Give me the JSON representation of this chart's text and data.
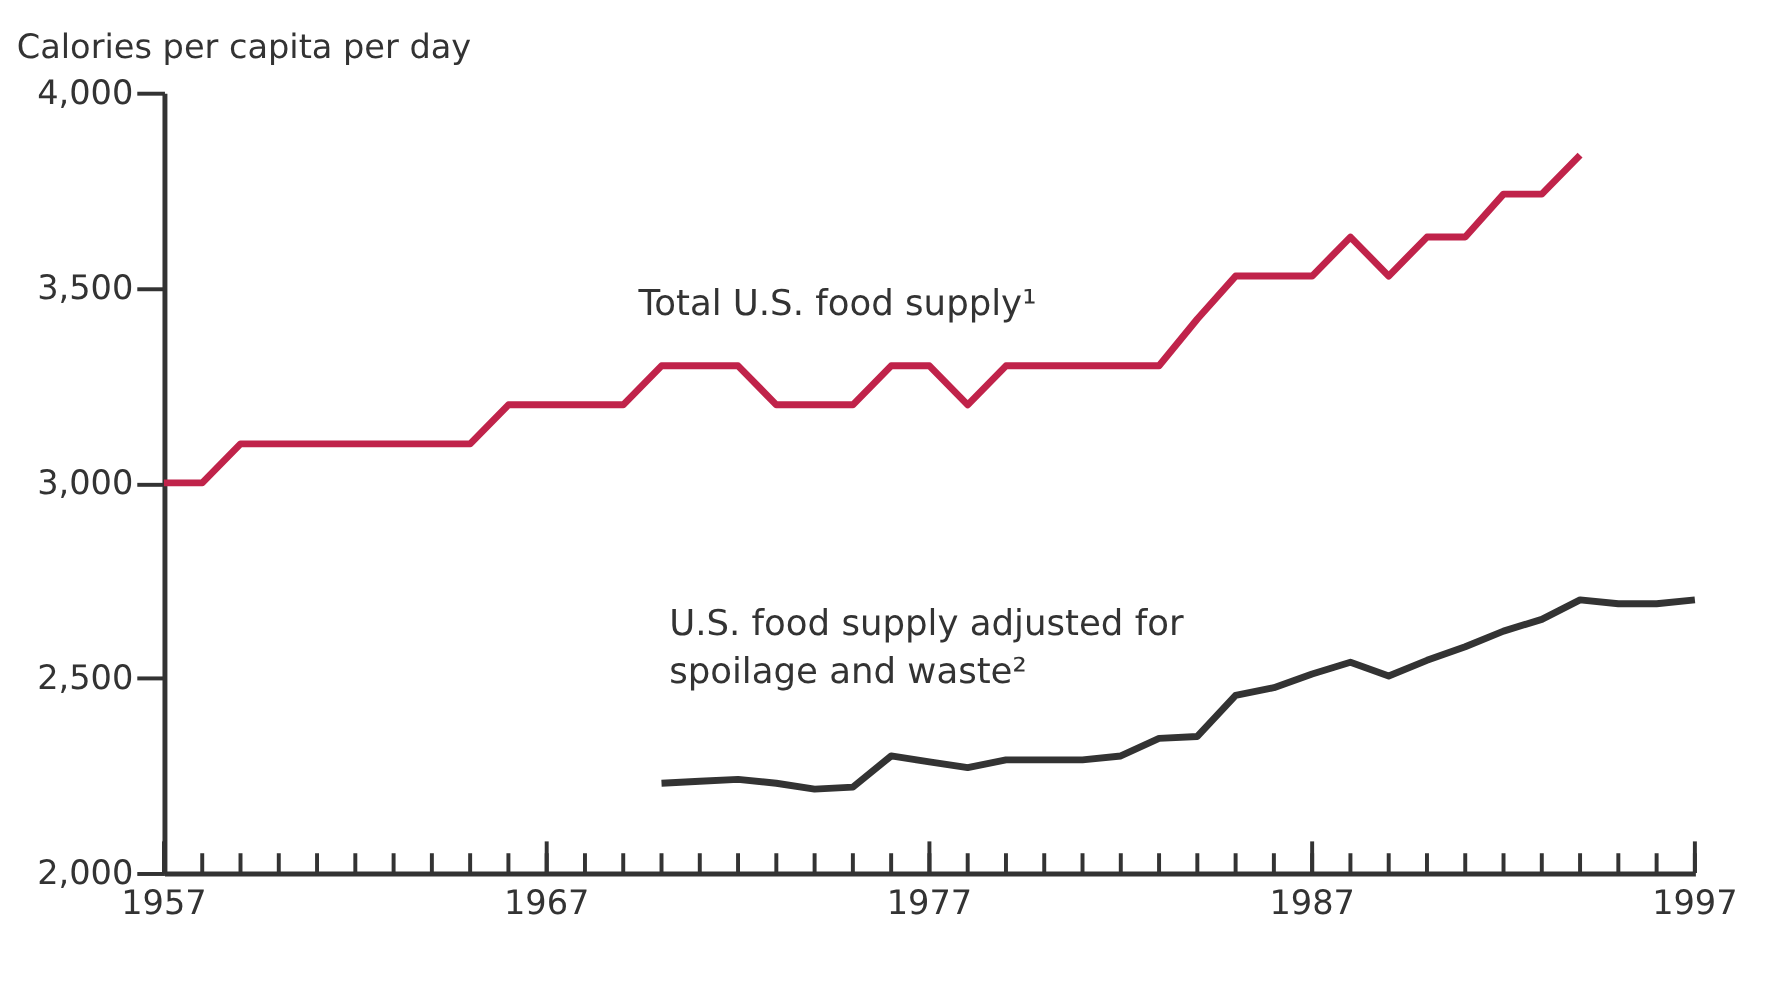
{
  "chart_data": {
    "type": "line",
    "ylabel": "Calories per capita per day",
    "x": [
      1957,
      1958,
      1959,
      1960,
      1961,
      1962,
      1963,
      1964,
      1965,
      1966,
      1967,
      1968,
      1969,
      1970,
      1971,
      1972,
      1973,
      1974,
      1975,
      1976,
      1977,
      1978,
      1979,
      1980,
      1981,
      1982,
      1983,
      1984,
      1985,
      1986,
      1987,
      1988,
      1989,
      1990,
      1991,
      1992,
      1993,
      1994,
      1995,
      1996,
      1997
    ],
    "series": [
      {
        "name": "Total U.S. food supply¹",
        "color": "#c0234a",
        "values": [
          3000,
          3000,
          3100,
          3100,
          3100,
          3100,
          3100,
          3100,
          3100,
          3200,
          3200,
          3200,
          3200,
          3300,
          3300,
          3300,
          3200,
          3200,
          3200,
          3300,
          3300,
          3200,
          3300,
          3300,
          3300,
          3300,
          3300,
          3420,
          3530,
          3530,
          3530,
          3630,
          3530,
          3630,
          3630,
          3740,
          3740,
          3840,
          null,
          null,
          null
        ]
      },
      {
        "name": "U.S. food supply adjusted for spoilage and waste²",
        "color": "#333333",
        "values": [
          null,
          null,
          null,
          null,
          null,
          null,
          null,
          null,
          null,
          null,
          null,
          null,
          null,
          2230,
          2235,
          2240,
          2230,
          2215,
          2220,
          2300,
          2285,
          2270,
          2290,
          2290,
          2290,
          2300,
          2345,
          2350,
          2455,
          2475,
          2510,
          2540,
          2505,
          2545,
          2580,
          2620,
          2650,
          2700,
          2690,
          2690,
          2700
        ]
      }
    ],
    "xlim": [
      1957,
      1997
    ],
    "xticks": [
      1957,
      {
        "value": 1958,
        "label": null
      },
      {
        "value": 1959,
        "label": null
      },
      {
        "value": 1960,
        "label": null
      },
      {
        "value": 1961,
        "label": null
      },
      {
        "value": 1962,
        "label": null
      },
      {
        "value": 1963,
        "label": null
      },
      {
        "value": 1964,
        "label": null
      },
      {
        "value": 1965,
        "label": null
      },
      {
        "value": 1966,
        "label": null
      },
      1967,
      {
        "value": 1968,
        "label": null
      },
      {
        "value": 1969,
        "label": null
      },
      {
        "value": 1970,
        "label": null
      },
      {
        "value": 1971,
        "label": null
      },
      {
        "value": 1972,
        "label": null
      },
      {
        "value": 1973,
        "label": null
      },
      {
        "value": 1974,
        "label": null
      },
      {
        "value": 1975,
        "label": null
      },
      {
        "value": 1976,
        "label": null
      },
      1977,
      {
        "value": 1978,
        "label": null
      },
      {
        "value": 1979,
        "label": null
      },
      {
        "value": 1980,
        "label": null
      },
      {
        "value": 1981,
        "label": null
      },
      {
        "value": 1982,
        "label": null
      },
      {
        "value": 1983,
        "label": null
      },
      {
        "value": 1984,
        "label": null
      },
      {
        "value": 1985,
        "label": null
      },
      {
        "value": 1986,
        "label": null
      },
      1987,
      {
        "value": 1988,
        "label": null
      },
      {
        "value": 1989,
        "label": null
      },
      {
        "value": 1990,
        "label": null
      },
      {
        "value": 1991,
        "label": null
      },
      {
        "value": 1992,
        "label": null
      },
      {
        "value": 1993,
        "label": null
      },
      {
        "value": 1994,
        "label": null
      },
      {
        "value": 1995,
        "label": null
      },
      {
        "value": 1996,
        "label": null
      },
      1997
    ],
    "ylim": [
      2000,
      4000
    ],
    "yticks": [
      {
        "value": 2000,
        "label": "2,000"
      },
      {
        "value": 2500,
        "label": "2,500"
      },
      {
        "value": 3000,
        "label": "3,000"
      },
      {
        "value": 3500,
        "label": "3,500"
      },
      {
        "value": 4000,
        "label": "4,000"
      }
    ],
    "grid": false,
    "legend": false,
    "marker": "none",
    "line_style": "solid"
  }
}
